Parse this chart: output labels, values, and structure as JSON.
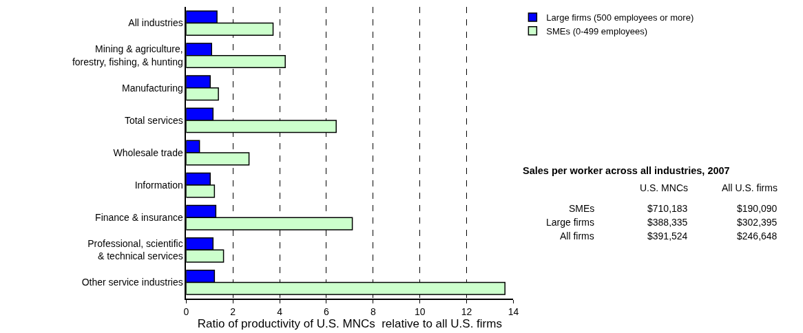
{
  "chart_data": {
    "type": "bar",
    "orientation": "horizontal",
    "categories": [
      "All industries",
      "Mining & agriculture,\nforestry, fishing, & hunting",
      "Manufacturing",
      "Total services",
      "Wholesale trade",
      "Information",
      "Finance & insurance",
      "Professional, scientific\n& technical services",
      "Other service industries"
    ],
    "series": [
      {
        "name": "Large firms (500 employees or more)",
        "color": "#0000ff",
        "values": [
          1.32,
          1.09,
          1.03,
          1.15,
          0.57,
          1.03,
          1.27,
          1.15,
          1.21
        ]
      },
      {
        "name": "SMEs (0-499 employees)",
        "color": "#ccffcc",
        "values": [
          3.72,
          4.24,
          1.38,
          6.42,
          2.69,
          1.21,
          7.11,
          1.6,
          13.64
        ]
      }
    ],
    "xlim": [
      0,
      14
    ],
    "xticks": [
      0,
      2,
      4,
      6,
      8,
      10,
      12,
      14
    ],
    "xlabel": "Ratio of productivity of U.S. MNCs  relative to all U.S. firms",
    "grid": "x",
    "legend": "top right",
    "annotations": [
      "Sales per worker across all industries, 2007",
      "U.S. MNCs",
      "All U.S. firms",
      "SMEs",
      "$710,183",
      "$190,090",
      "Large firms",
      "$388,335",
      "$302,395",
      "All firms",
      "$391,524",
      "$246,648"
    ]
  }
}
